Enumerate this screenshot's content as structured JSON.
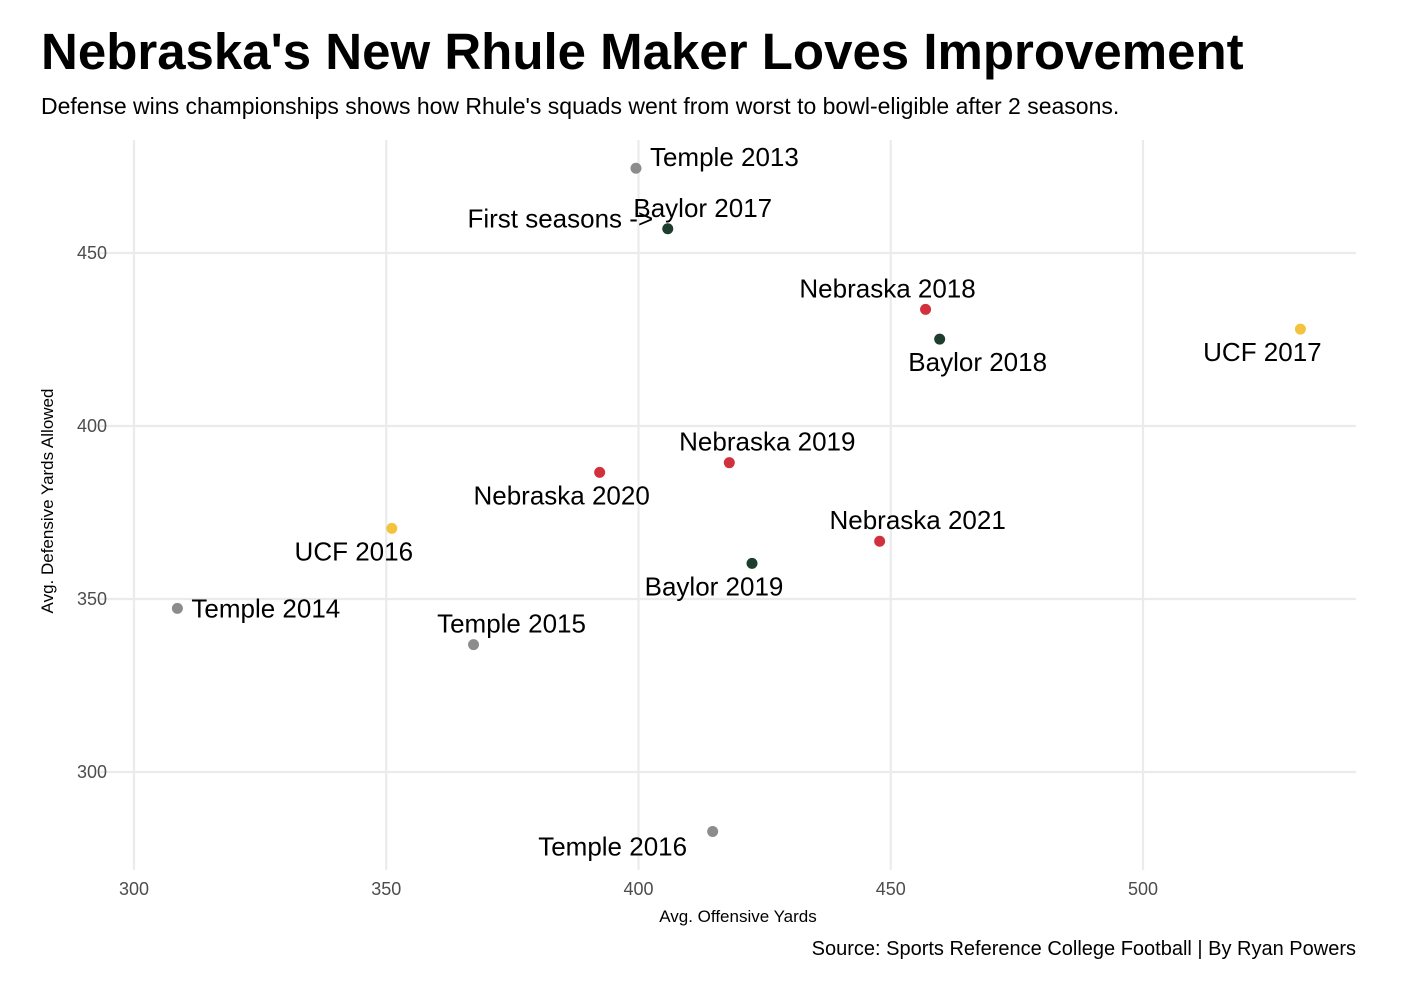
{
  "chart_data": {
    "type": "scatter",
    "title": "Nebraska's New Rhule Maker Loves Improvement",
    "subtitle": "Defense wins championships shows how Rhule's squads went from worst to bowl-eligible after 2 seasons.",
    "caption": "Source: Sports Reference College Football | By Ryan Powers",
    "xlabel": "Avg. Offensive Yards",
    "ylabel": "Avg. Defensive Yards Allowed",
    "xlim": [
      300,
      540
    ],
    "ylim": [
      275,
      480
    ],
    "xticks": [
      300,
      350,
      400,
      450,
      500
    ],
    "yticks": [
      300,
      350,
      400,
      450
    ],
    "grid": true,
    "legend": "none",
    "annotation": {
      "text": "First seasons ->",
      "x": 384.5,
      "y": 460
    },
    "colors": {
      "Temple": "#8c8c8c",
      "Baylor": "#1f3d2f",
      "Nebraska": "#d1313c",
      "UCF": "#f3c33e"
    },
    "points": [
      {
        "label": "Temple 2013",
        "team": "Temple",
        "x": 399.5,
        "y": 474.5,
        "anchor": "start",
        "dx": 14,
        "dy": -2
      },
      {
        "label": "Baylor 2017",
        "team": "Baylor",
        "x": 405.8,
        "y": 457.0,
        "anchor": "middle",
        "dx": 35,
        "dy": -12
      },
      {
        "label": "Nebraska 2018",
        "team": "Nebraska",
        "x": 456.9,
        "y": 433.7,
        "anchor": "middle",
        "dx": -38,
        "dy": -12
      },
      {
        "label": "Baylor 2018",
        "team": "Baylor",
        "x": 459.7,
        "y": 425.1,
        "anchor": "middle",
        "dx": 38,
        "dy": 32
      },
      {
        "label": "UCF 2017",
        "team": "UCF",
        "x": 531.2,
        "y": 428.0,
        "anchor": "middle",
        "dx": -38,
        "dy": 32
      },
      {
        "label": "Nebraska 2019",
        "team": "Nebraska",
        "x": 418.0,
        "y": 389.4,
        "anchor": "middle",
        "dx": 38,
        "dy": -12
      },
      {
        "label": "Nebraska 2020",
        "team": "Nebraska",
        "x": 392.3,
        "y": 386.6,
        "anchor": "middle",
        "dx": -38,
        "dy": 32
      },
      {
        "label": "UCF 2016",
        "team": "UCF",
        "x": 351.1,
        "y": 370.4,
        "anchor": "middle",
        "dx": -38,
        "dy": 32
      },
      {
        "label": "Nebraska 2021",
        "team": "Nebraska",
        "x": 447.8,
        "y": 366.7,
        "anchor": "middle",
        "dx": 38,
        "dy": -12
      },
      {
        "label": "Baylor 2019",
        "team": "Baylor",
        "x": 422.5,
        "y": 360.3,
        "anchor": "middle",
        "dx": -38,
        "dy": 32
      },
      {
        "label": "Temple 2014",
        "team": "Temple",
        "x": 308.6,
        "y": 347.3,
        "anchor": "start",
        "dx": 14,
        "dy": 9
      },
      {
        "label": "Temple 2015",
        "team": "Temple",
        "x": 367.3,
        "y": 336.8,
        "anchor": "middle",
        "dx": 38,
        "dy": -12
      },
      {
        "label": "Temple 2016",
        "team": "Temple",
        "x": 414.7,
        "y": 282.8,
        "anchor": "middle",
        "dx": -100,
        "dy": 24
      }
    ]
  }
}
